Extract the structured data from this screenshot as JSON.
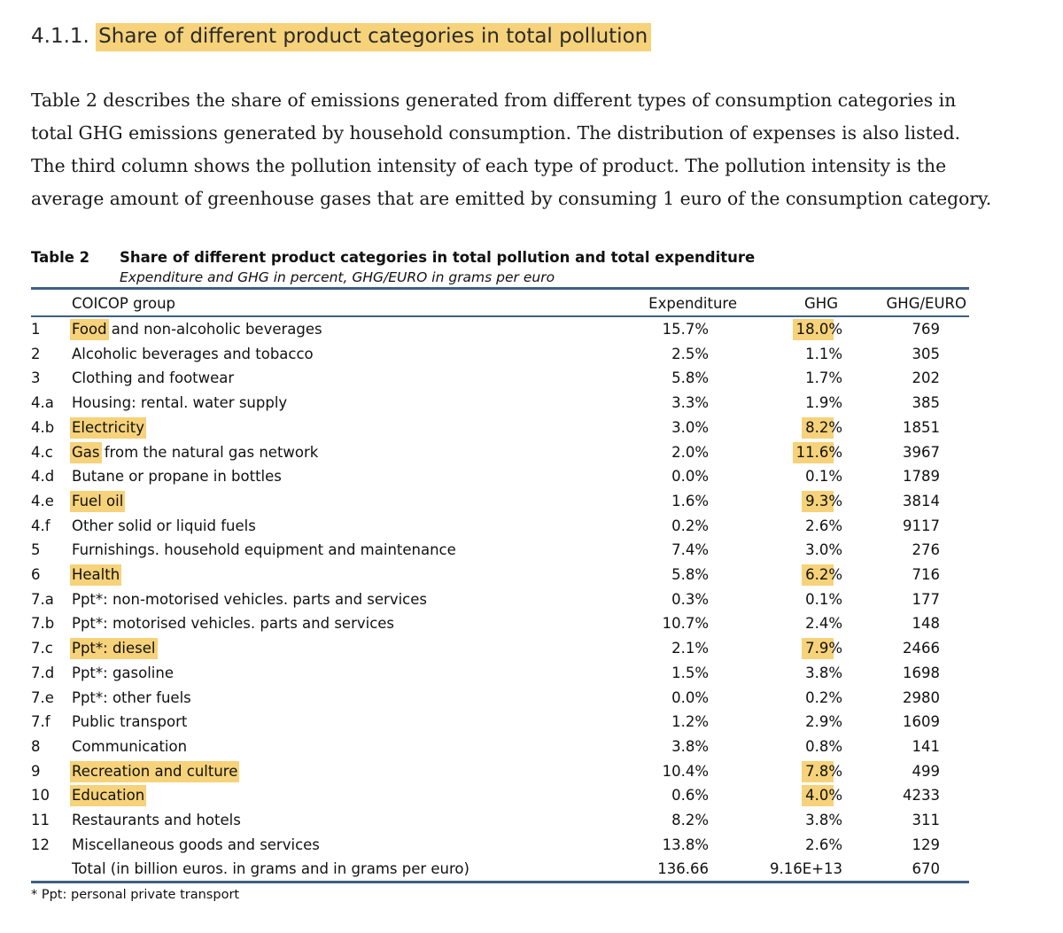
{
  "heading": {
    "number": "4.1.1.",
    "title": "Share of different product categories in total pollution"
  },
  "paragraph": [
    "Table 2 describes the share of emissions generated from different types of consumption categories in",
    "total GHG emissions generated by household consumption. The distribution of expenses is also listed.",
    "The third column shows the pollution intensity of each type of product. The pollution intensity is the",
    "average amount of greenhouse gases that are emitted by consuming 1 euro of the consumption category."
  ],
  "table": {
    "label": "Table 2",
    "title": "Share of different product categories in total pollution and total expenditure",
    "subtitle": "Expenditure and GHG in percent, GHG/EURO in grams per euro",
    "columns": {
      "group": "COICOP group",
      "expenditure": "Expenditure",
      "ghg": "GHG",
      "ghg_euro": "GHG/EURO"
    },
    "rows": [
      {
        "no": "1",
        "group": "Food and non-alcoholic beverages",
        "exp": "15.7%",
        "ghg": "18.0%",
        "ge": "769",
        "hl": true
      },
      {
        "no": "2",
        "group": "Alcoholic beverages and tobacco",
        "exp": "2.5%",
        "ghg": "1.1%",
        "ge": "305",
        "hl": false
      },
      {
        "no": "3",
        "group": "Clothing and footwear",
        "exp": "5.8%",
        "ghg": "1.7%",
        "ge": "202",
        "hl": false
      },
      {
        "no": "4.a",
        "group": "Housing: rental. water supply",
        "exp": "3.3%",
        "ghg": "1.9%",
        "ge": "385",
        "hl": false
      },
      {
        "no": "4.b",
        "group": "Electricity",
        "exp": "3.0%",
        "ghg": "8.2%",
        "ge": "1851",
        "hl": true
      },
      {
        "no": "4.c",
        "group": "Gas from the natural gas network",
        "exp": "2.0%",
        "ghg": "11.6%",
        "ge": "3967",
        "hl": true
      },
      {
        "no": "4.d",
        "group": "Butane or propane in bottles",
        "exp": "0.0%",
        "ghg": "0.1%",
        "ge": "1789",
        "hl": false
      },
      {
        "no": "4.e",
        "group": "Fuel oil",
        "exp": "1.6%",
        "ghg": "9.3%",
        "ge": "3814",
        "hl": true
      },
      {
        "no": "4.f",
        "group": "Other solid or liquid fuels",
        "exp": "0.2%",
        "ghg": "2.6%",
        "ge": "9117",
        "hl": false
      },
      {
        "no": "5",
        "group": "Furnishings. household equipment and maintenance",
        "exp": "7.4%",
        "ghg": "3.0%",
        "ge": "276",
        "hl": false
      },
      {
        "no": "6",
        "group": "Health",
        "exp": "5.8%",
        "ghg": "6.2%",
        "ge": "716",
        "hl": true
      },
      {
        "no": "7.a",
        "group": "Ppt*: non-motorised vehicles. parts and services",
        "exp": "0.3%",
        "ghg": "0.1%",
        "ge": "177",
        "hl": false
      },
      {
        "no": "7.b",
        "group": "Ppt*: motorised vehicles. parts and services",
        "exp": "10.7%",
        "ghg": "2.4%",
        "ge": "148",
        "hl": false
      },
      {
        "no": "7.c",
        "group": "Ppt*: diesel",
        "exp": "2.1%",
        "ghg": "7.9%",
        "ge": "2466",
        "hl": true
      },
      {
        "no": "7.d",
        "group": "Ppt*: gasoline",
        "exp": "1.5%",
        "ghg": "3.8%",
        "ge": "1698",
        "hl": false
      },
      {
        "no": "7.e",
        "group": "Ppt*: other fuels",
        "exp": "0.0%",
        "ghg": "0.2%",
        "ge": "2980",
        "hl": false
      },
      {
        "no": "7.f",
        "group": "Public transport",
        "exp": "1.2%",
        "ghg": "2.9%",
        "ge": "1609",
        "hl": false
      },
      {
        "no": "8",
        "group": "Communication",
        "exp": "3.8%",
        "ghg": "0.8%",
        "ge": "141",
        "hl": false
      },
      {
        "no": "9",
        "group": "Recreation and culture",
        "exp": "10.4%",
        "ghg": "7.8%",
        "ge": "499",
        "hl": true
      },
      {
        "no": "10",
        "group": "Education",
        "exp": "0.6%",
        "ghg": "4.0%",
        "ge": "4233",
        "hl": true
      },
      {
        "no": "11",
        "group": "Restaurants and hotels",
        "exp": "8.2%",
        "ghg": "3.8%",
        "ge": "311",
        "hl": false
      },
      {
        "no": "12",
        "group": "Miscellaneous goods and services",
        "exp": "13.8%",
        "ghg": "2.6%",
        "ge": "129",
        "hl": false
      },
      {
        "no": "",
        "group": "Total (in billion euros. in grams and in grams per euro)",
        "exp": "136.66",
        "ghg": "9.16E+13",
        "ge": "670",
        "hl": false
      }
    ],
    "footnote": "* Ppt: personal private transport"
  },
  "colors": {
    "highlight": "#f6d27a",
    "rule": "#3f5f86"
  }
}
